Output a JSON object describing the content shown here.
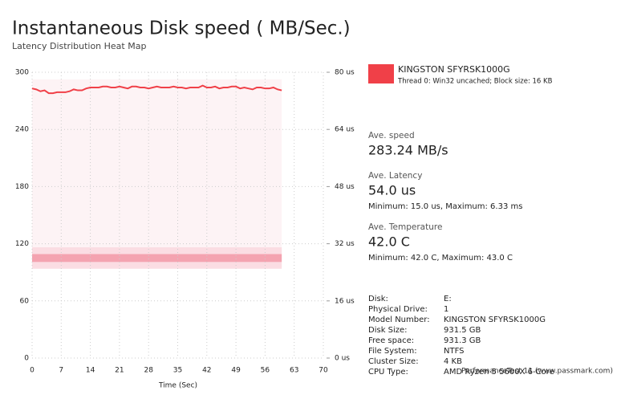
{
  "chart_data": {
    "type": "line",
    "title": "Instantaneous Disk speed ( MB/Sec.)",
    "subtitle": "Latency Distribution Heat Map",
    "x_label": "Time (Sec)",
    "x": [
      0,
      1,
      2,
      3,
      4,
      5,
      6,
      7,
      8,
      9,
      10,
      11,
      12,
      13,
      14,
      15,
      16,
      17,
      18,
      19,
      20,
      21,
      22,
      23,
      24,
      25,
      26,
      27,
      28,
      29,
      30,
      31,
      32,
      33,
      34,
      35,
      36,
      37,
      38,
      39,
      40,
      41,
      42,
      43,
      44,
      45,
      46,
      47,
      48,
      49,
      50,
      51,
      52,
      53,
      54,
      55,
      56,
      57,
      58,
      59,
      60
    ],
    "series": [
      {
        "name": "KINGSTON SFYRSK1000G",
        "color": "#f04048",
        "values": [
          283,
          282,
          280,
          281,
          278,
          278,
          279,
          279,
          279,
          280,
          282,
          281,
          281,
          283,
          284,
          284,
          284,
          285,
          285,
          284,
          284,
          285,
          284,
          283,
          285,
          285,
          284,
          284,
          283,
          284,
          285,
          284,
          284,
          284,
          285,
          284,
          284,
          283,
          284,
          284,
          284,
          286,
          284,
          284,
          285,
          283,
          284,
          284,
          285,
          285,
          283,
          284,
          283,
          282,
          284,
          284,
          283,
          283,
          284,
          282,
          281
        ]
      }
    ],
    "legend_subtitle": "Thread 0: Win32 uncached; Block size: 16 KB",
    "heatmap": {
      "x_range": [
        0,
        60
      ],
      "rows": [
        {
          "range": [
            25.5,
            78
          ],
          "color": "#fdf3f5"
        },
        {
          "range": [
            25,
            31
          ],
          "color": "#fbdde3"
        },
        {
          "range": [
            26.9,
            29.1
          ],
          "color": "#f4a3b0"
        }
      ]
    },
    "xlim": [
      0,
      70
    ],
    "xticks": [
      0,
      7,
      14,
      21,
      28,
      35,
      42,
      49,
      56,
      63,
      70
    ],
    "ylim": [
      0,
      300
    ],
    "yticks": [
      0,
      60,
      120,
      180,
      240,
      300
    ],
    "y2lim": [
      0,
      80
    ],
    "y2ticks": [
      {
        "value": 0,
        "label": "0 us"
      },
      {
        "value": 16,
        "label": "16 us"
      },
      {
        "value": 32,
        "label": "32 us"
      },
      {
        "value": 48,
        "label": "48 us"
      },
      {
        "value": 64,
        "label": "64 us"
      },
      {
        "value": 80,
        "label": "80 us"
      }
    ],
    "grid": true
  },
  "panel": {
    "stats": [
      {
        "label": "Ave. speed",
        "value": "283.24 MB/s"
      },
      {
        "label": "Ave. Latency",
        "value": "54.0 us",
        "detail": "Minimum: 15.0 us, Maximum: 6.33 ms"
      },
      {
        "label": "Ave. Temperature",
        "value": "42.0 C",
        "detail": "Minimum: 42.0 C, Maximum: 43.0 C"
      }
    ],
    "info": [
      {
        "label": "Disk:",
        "value": "E:"
      },
      {
        "label": "Physical Drive:",
        "value": "1"
      },
      {
        "label": "Model Number:",
        "value": "KINGSTON SFYRSK1000G"
      },
      {
        "label": "Disk Size:",
        "value": "931.5 GB"
      },
      {
        "label": "Free space:",
        "value": "931.3 GB"
      },
      {
        "label": "File System:",
        "value": "NTFS"
      },
      {
        "label": "Cluster Size:",
        "value": "4 KB"
      },
      {
        "label": "CPU Type:",
        "value": "AMD Ryzen 5 5600X 6-Core"
      }
    ],
    "watermark": "PerformanceTest 11 (www.passmark.com)"
  }
}
